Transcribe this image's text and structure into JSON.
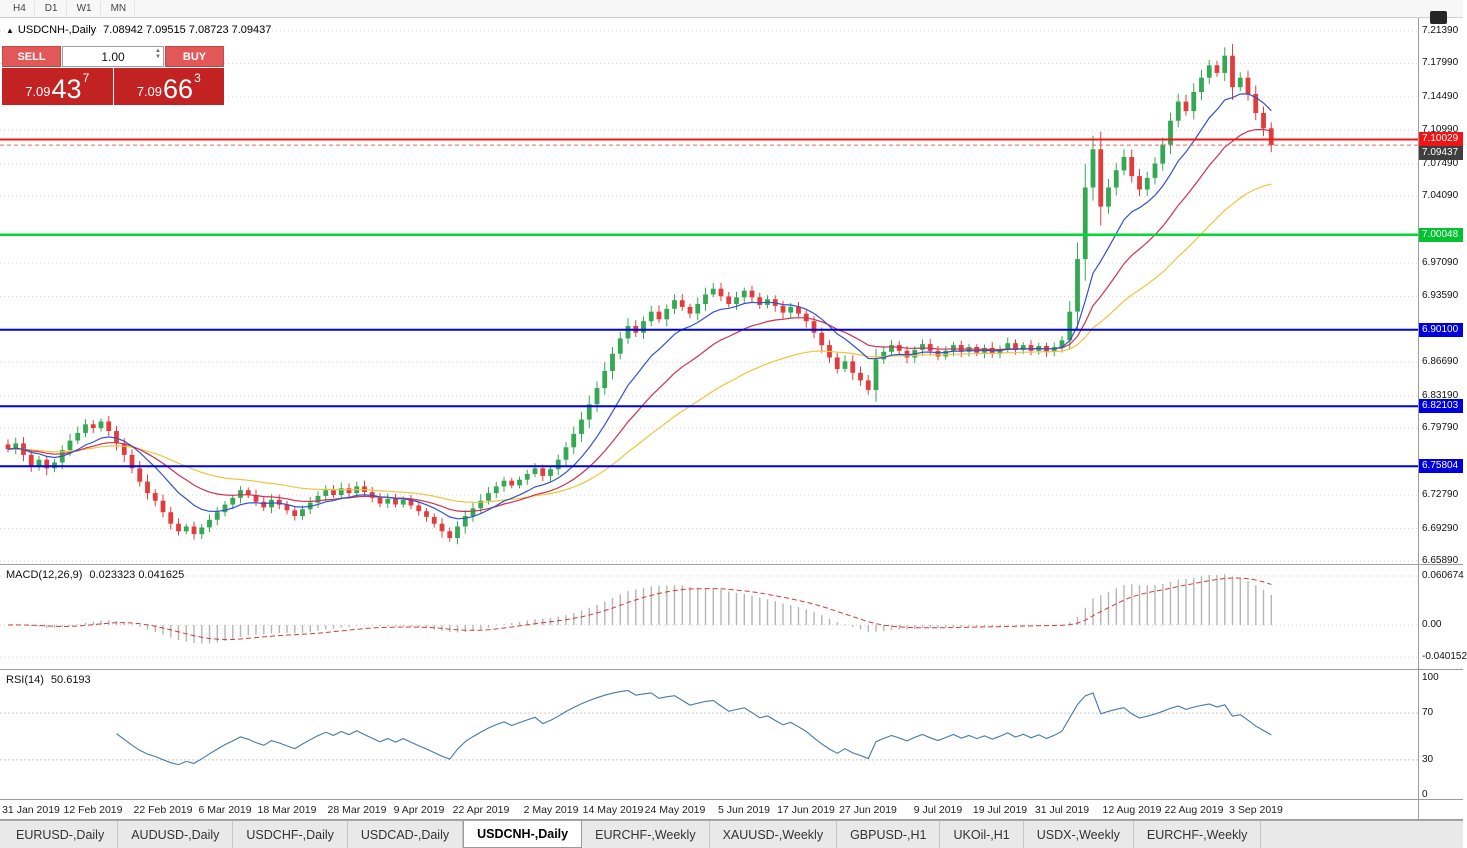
{
  "window": {
    "timeframes": [
      "H4",
      "D1",
      "W1",
      "MN"
    ]
  },
  "chart_header": {
    "symbol_label": "USDCNH-,Daily",
    "ohlc": "7.08942 7.09515 7.08723 7.09437"
  },
  "trade_panel": {
    "sell_label": "SELL",
    "buy_label": "BUY",
    "volume": "1.00",
    "sell_price": {
      "prefix": "7.09",
      "big": "43",
      "sup": "7"
    },
    "buy_price": {
      "prefix": "7.09",
      "big": "66",
      "sup": "3"
    }
  },
  "price_axis": {
    "ticks": [
      "7.21390",
      "7.17990",
      "7.14490",
      "7.10990",
      "7.07490",
      "7.04090",
      "6.97090",
      "6.93590",
      "6.86690",
      "6.83190",
      "6.79790",
      "6.72790",
      "6.69290",
      "6.65890"
    ],
    "badges": [
      {
        "text": "7.10029",
        "type": "red"
      },
      {
        "text": "7.09437",
        "type": "current"
      },
      {
        "text": "7.00048",
        "type": "green"
      },
      {
        "text": "6.90100",
        "type": "blue"
      },
      {
        "text": "6.82103",
        "type": "blue"
      },
      {
        "text": "6.75804",
        "type": "blue"
      }
    ]
  },
  "macd_panel": {
    "label": "MACD(12,26,9)",
    "values": "0.023323 0.041625",
    "axis_ticks": [
      "0.060674",
      "0.00",
      "-0.040152"
    ]
  },
  "rsi_panel": {
    "label": "RSI(14)",
    "value": "50.6193",
    "axis_ticks": [
      "100",
      "70",
      "30",
      "0"
    ]
  },
  "tabs": {
    "items": [
      "EURUSD-,Daily",
      "AUDUSD-,Daily",
      "USDCHF-,Daily",
      "USDCAD-,Daily",
      "USDCNH-,Daily",
      "EURCHF-,Weekly",
      "XAUUSD-,Weekly",
      "GBPUSD-,H1",
      "UKOil-,H1",
      "USDX-,Weekly",
      "EURCHF-,Weekly"
    ],
    "active_index": 4
  },
  "colors": {
    "candle_up": "#35a854",
    "candle_down": "#e23d3d",
    "ma_blue": "#3452c9",
    "ma_red": "#cc3350",
    "ma_yellow": "#edc53f",
    "level_red": "#f01414",
    "level_green": "#00d930",
    "level_blue": "#0000e6",
    "bid_line": "#e06666",
    "grid": "#d6d6d6",
    "grid2": "#c9c9c9",
    "macd_hist": "#b5b5b5",
    "macd_signal": "#d43b3b",
    "rsi_line": "#4579a8"
  },
  "chart_data": {
    "type": "candlestick",
    "symbol": "USDCNH",
    "period": "Daily",
    "ohlc_current": {
      "open": 7.08942,
      "high": 7.09515,
      "low": 7.08723,
      "close": 7.09437
    },
    "ylim": [
      6.6589,
      7.2139
    ],
    "closes": [
      6.776,
      6.782,
      6.77,
      6.758,
      6.765,
      6.756,
      6.762,
      6.775,
      6.785,
      6.793,
      6.802,
      6.798,
      6.805,
      6.795,
      6.782,
      6.77,
      6.756,
      6.742,
      6.73,
      6.722,
      6.71,
      6.698,
      6.69,
      6.695,
      6.687,
      6.694,
      6.702,
      6.71,
      6.718,
      6.725,
      6.733,
      6.728,
      6.721,
      6.715,
      6.723,
      6.718,
      6.712,
      6.706,
      6.713,
      6.72,
      6.727,
      6.733,
      6.728,
      6.735,
      6.73,
      6.737,
      6.731,
      6.725,
      6.719,
      6.724,
      6.718,
      6.723,
      6.717,
      6.711,
      6.705,
      6.698,
      6.69,
      6.683,
      6.695,
      6.706,
      6.714,
      6.722,
      6.73,
      6.737,
      6.743,
      6.738,
      6.744,
      6.75,
      6.756,
      6.748,
      6.755,
      6.765,
      6.778,
      6.792,
      6.807,
      6.823,
      6.84,
      6.858,
      6.876,
      6.892,
      6.905,
      6.898,
      6.91,
      6.92,
      6.912,
      6.923,
      6.932,
      6.925,
      6.918,
      6.928,
      6.938,
      6.944,
      6.936,
      6.928,
      6.935,
      6.942,
      6.935,
      6.927,
      6.933,
      6.926,
      6.919,
      6.925,
      6.918,
      6.91,
      6.898,
      6.885,
      6.872,
      6.86,
      6.868,
      6.856,
      6.848,
      6.838,
      6.87,
      6.878,
      6.885,
      6.879,
      6.872,
      6.88,
      6.886,
      6.879,
      6.873,
      6.879,
      6.885,
      6.878,
      6.883,
      6.877,
      6.882,
      6.876,
      6.881,
      6.887,
      6.88,
      6.885,
      6.879,
      6.884,
      6.878,
      6.883,
      6.89,
      6.92,
      6.975,
      7.05,
      7.09,
      7.03,
      7.05,
      7.068,
      7.082,
      7.062,
      7.048,
      7.06,
      7.075,
      7.095,
      7.12,
      7.14,
      7.13,
      7.15,
      7.165,
      7.178,
      7.17,
      7.188,
      7.155,
      7.165,
      7.148,
      7.128,
      7.112,
      7.0944
    ],
    "levels": {
      "resistance_red": 7.10029,
      "support_green": 7.00048,
      "support_blue": [
        6.901,
        6.82103,
        6.75804
      ],
      "bid": 7.09437
    },
    "indicators": {
      "macd": {
        "fast": 12,
        "slow": 26,
        "signal": 9,
        "current_main": 0.023323,
        "current_signal": 0.041625
      },
      "rsi": {
        "period": 14,
        "current": 50.6193
      },
      "moving_averages": [
        {
          "color": "blue",
          "period": 10
        },
        {
          "color": "red",
          "period": 20
        },
        {
          "color": "yellow",
          "period": 40
        }
      ]
    },
    "time_axis": {
      "labels": [
        "31 Jan 2019",
        "12 Feb 2019",
        "22 Feb 2019",
        "6 Mar 2019",
        "18 Mar 2019",
        "28 Mar 2019",
        "9 Apr 2019",
        "22 Apr 2019",
        "2 May 2019",
        "14 May 2019",
        "24 May 2019",
        "5 Jun 2019",
        "17 Jun 2019",
        "27 Jun 2019",
        "9 Jul 2019",
        "19 Jul 2019",
        "31 Jul 2019",
        "12 Aug 2019",
        "22 Aug 2019",
        "3 Sep 2019"
      ],
      "candle_indices": [
        3,
        11,
        20,
        28,
        36,
        45,
        53,
        61,
        70,
        78,
        86,
        95,
        103,
        111,
        120,
        128,
        136,
        145,
        153,
        161
      ]
    }
  }
}
